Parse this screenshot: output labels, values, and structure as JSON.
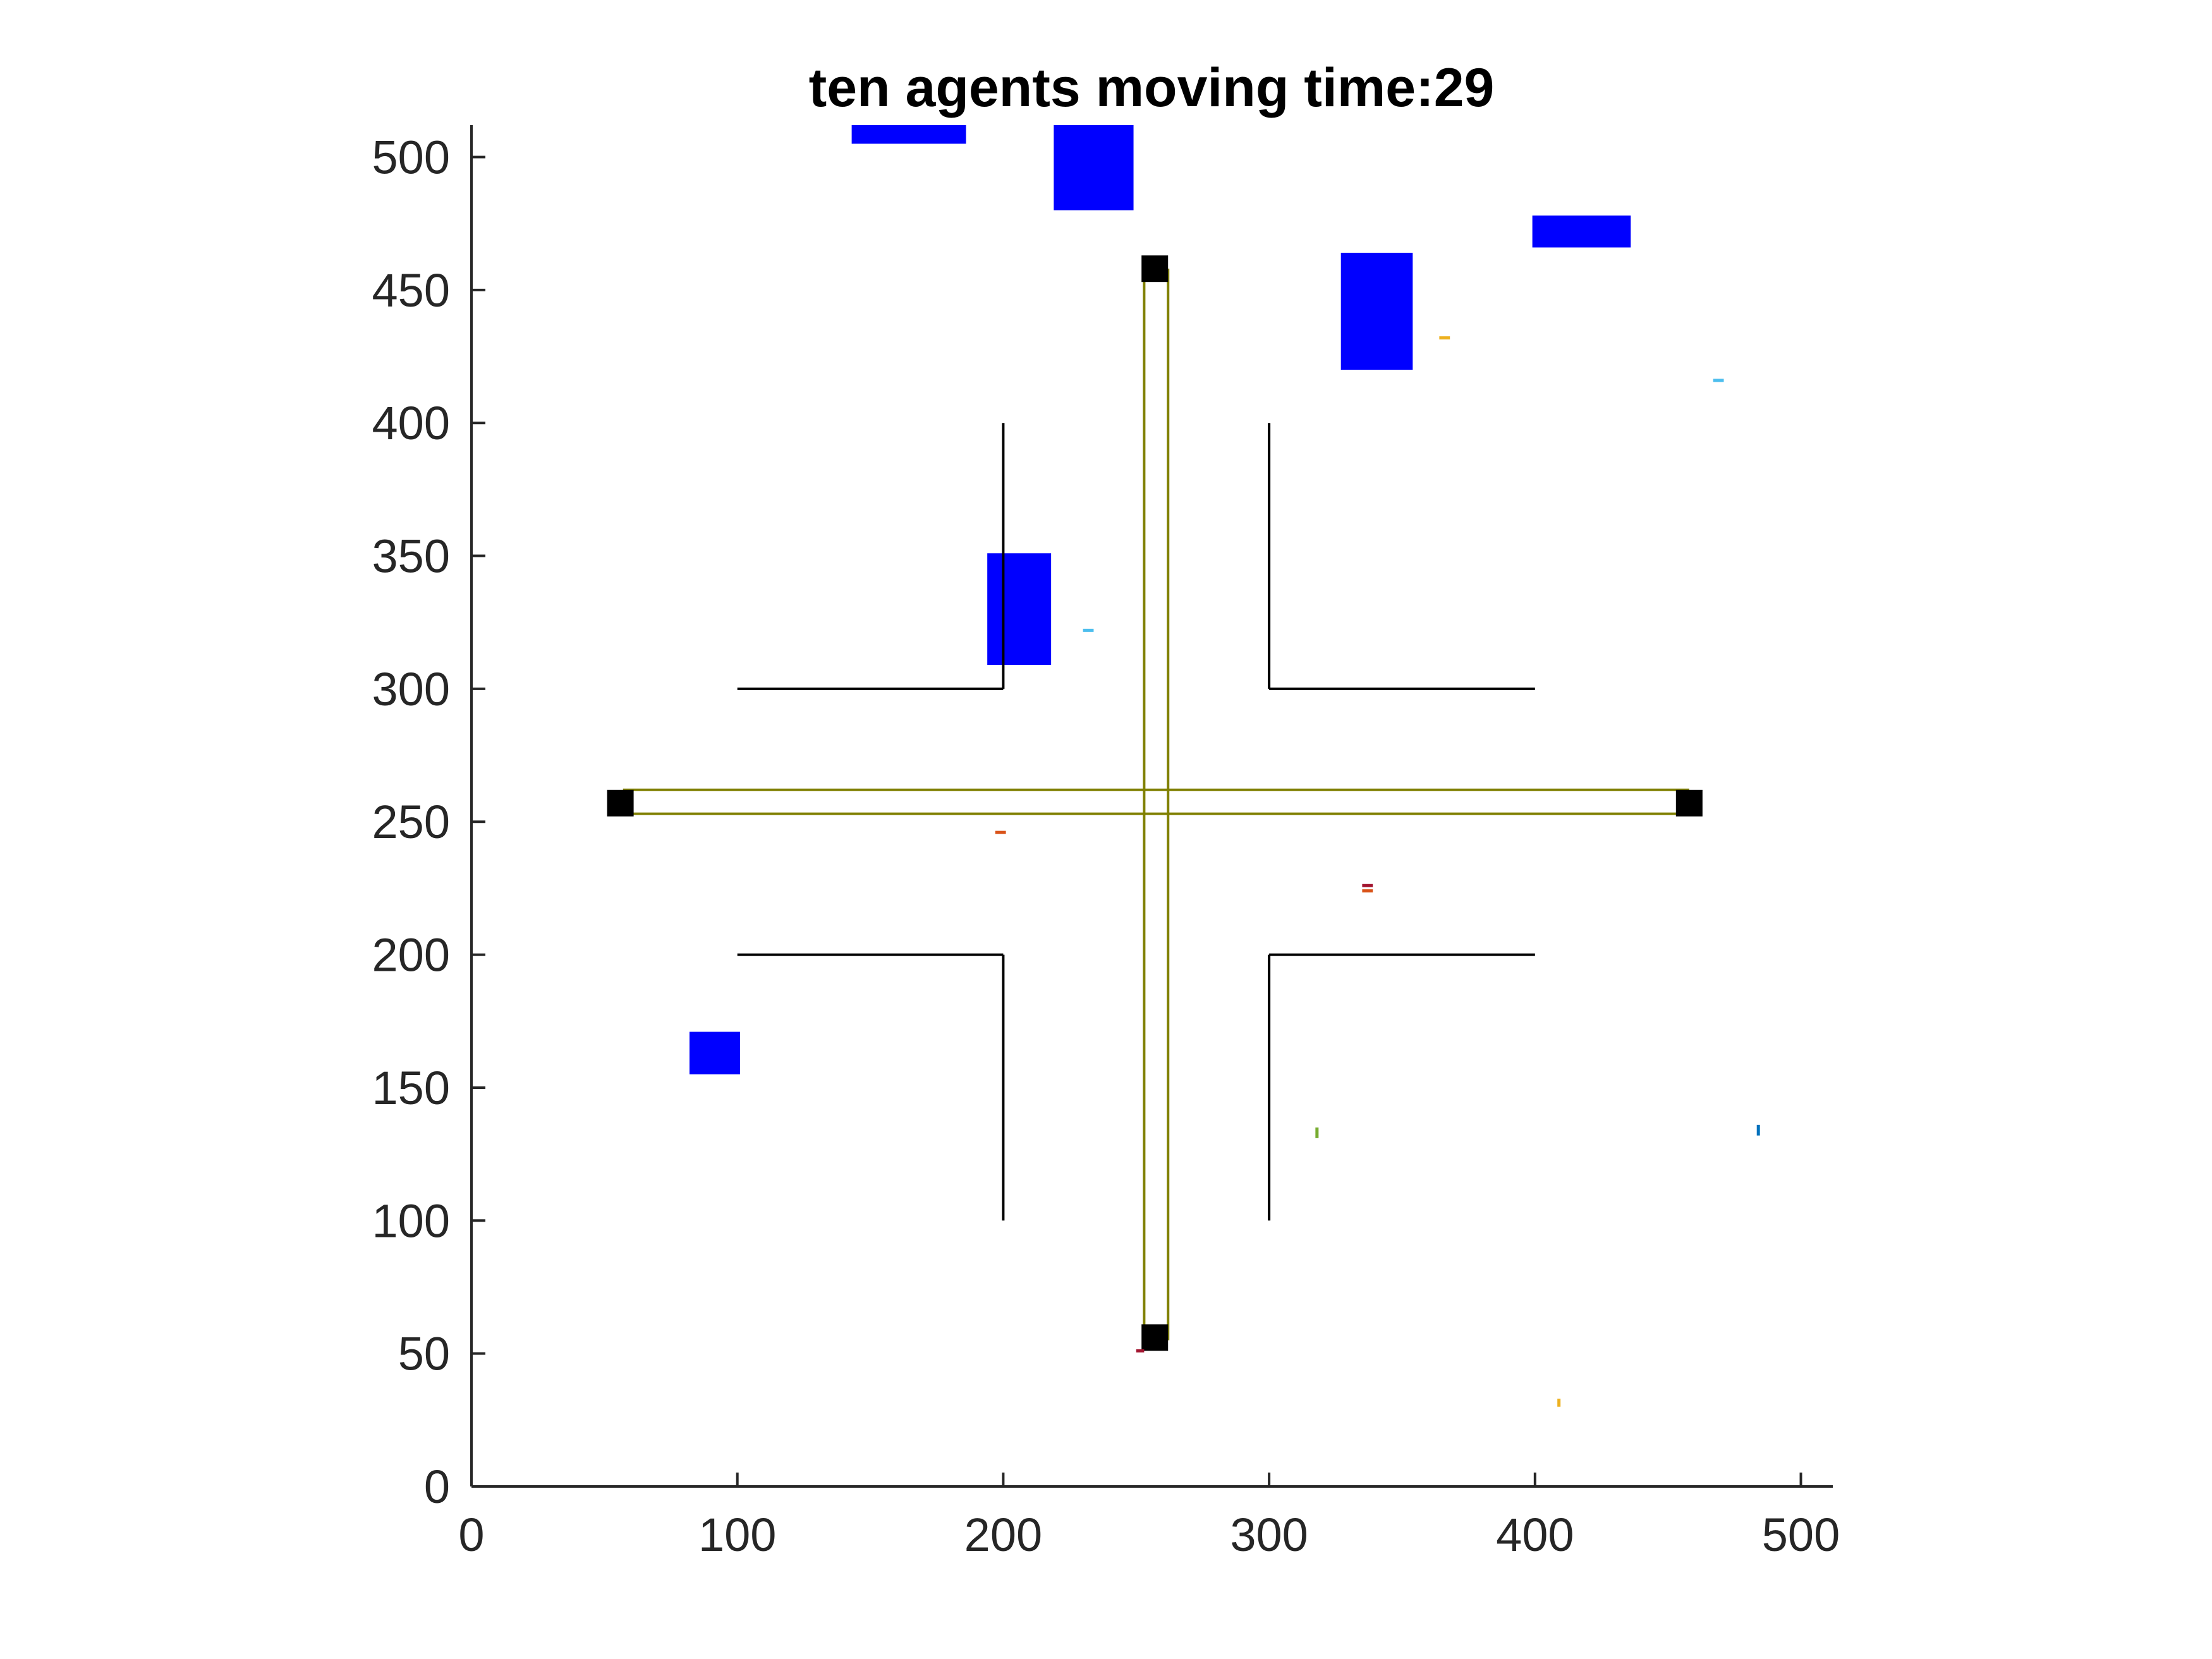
{
  "chart_data": {
    "type": "scatter",
    "title": "ten agents moving time:29",
    "xlabel": "",
    "ylabel": "",
    "xlim": [
      0,
      512
    ],
    "ylim": [
      0,
      512
    ],
    "xticks": [
      0,
      100,
      200,
      300,
      400,
      500
    ],
    "yticks": [
      0,
      50,
      100,
      150,
      200,
      250,
      300,
      350,
      400,
      450,
      500
    ],
    "xtick_labels": [
      "0",
      "100",
      "200",
      "300",
      "400",
      "500"
    ],
    "ytick_labels": [
      "0",
      "50",
      "100",
      "150",
      "200",
      "250",
      "300",
      "350",
      "400",
      "450",
      "500"
    ],
    "grid": false,
    "walls": [
      {
        "x": [
          200,
          200
        ],
        "y": [
          400,
          300
        ]
      },
      {
        "x": [
          100,
          200
        ],
        "y": [
          300,
          300
        ]
      },
      {
        "x": [
          300,
          300
        ],
        "y": [
          400,
          300
        ]
      },
      {
        "x": [
          300,
          400
        ],
        "y": [
          300,
          300
        ]
      },
      {
        "x": [
          100,
          200
        ],
        "y": [
          200,
          200
        ]
      },
      {
        "x": [
          200,
          200
        ],
        "y": [
          200,
          100
        ]
      },
      {
        "x": [
          300,
          400
        ],
        "y": [
          200,
          200
        ]
      },
      {
        "x": [
          300,
          300
        ],
        "y": [
          200,
          100
        ]
      }
    ],
    "lanes": [
      {
        "x": [
          57,
          458
        ],
        "y": [
          262,
          262
        ]
      },
      {
        "x": [
          57,
          458
        ],
        "y": [
          253,
          253
        ]
      },
      {
        "x": [
          253,
          253
        ],
        "y": [
          55,
          458
        ]
      },
      {
        "x": [
          262,
          262
        ],
        "y": [
          55,
          458
        ]
      }
    ],
    "endpoints": [
      {
        "x": 257,
        "y": 458
      },
      {
        "x": 257,
        "y": 56
      },
      {
        "x": 56,
        "y": 257
      },
      {
        "x": 458,
        "y": 257
      }
    ],
    "obstacles": [
      {
        "x": [
          143,
          186
        ],
        "y": [
          505,
          512
        ]
      },
      {
        "x": [
          219,
          249
        ],
        "y": [
          480,
          512
        ]
      },
      {
        "x": [
          327,
          354
        ],
        "y": [
          420,
          464
        ]
      },
      {
        "x": [
          399,
          436
        ],
        "y": [
          466,
          478
        ]
      },
      {
        "x": [
          194,
          218
        ],
        "y": [
          309,
          351
        ]
      },
      {
        "x": [
          82,
          101
        ],
        "y": [
          155,
          171
        ]
      }
    ],
    "agents": [
      {
        "x": [
          364,
          368
        ],
        "y": [
          432,
          432
        ],
        "color": "#EDB120"
      },
      {
        "x": [
          467,
          471
        ],
        "y": [
          416,
          416
        ],
        "color": "#4DBEEE"
      },
      {
        "x": [
          230,
          234
        ],
        "y": [
          322,
          322
        ],
        "color": "#4DBEEE"
      },
      {
        "x": [
          197,
          201
        ],
        "y": [
          246,
          246
        ],
        "color": "#D95319"
      },
      {
        "x": [
          335,
          339
        ],
        "y": [
          226,
          226
        ],
        "color": "#A2142F"
      },
      {
        "x": [
          335,
          339
        ],
        "y": [
          224,
          224
        ],
        "color": "#D95319"
      },
      {
        "x": [
          318,
          318
        ],
        "y": [
          131,
          135
        ],
        "color": "#77AC30"
      },
      {
        "x": [
          484,
          484
        ],
        "y": [
          132,
          136
        ],
        "color": "#0072BD"
      },
      {
        "x": [
          409,
          409
        ],
        "y": [
          30,
          33
        ],
        "color": "#EDB120"
      },
      {
        "x": [
          250,
          253
        ],
        "y": [
          51,
          51
        ],
        "color": "#A2142F"
      }
    ],
    "colors": {
      "obstacle": "#0000FF",
      "wall": "#000000",
      "lane": "#808000",
      "endpoint": "#000000",
      "axis": "#262626"
    }
  }
}
